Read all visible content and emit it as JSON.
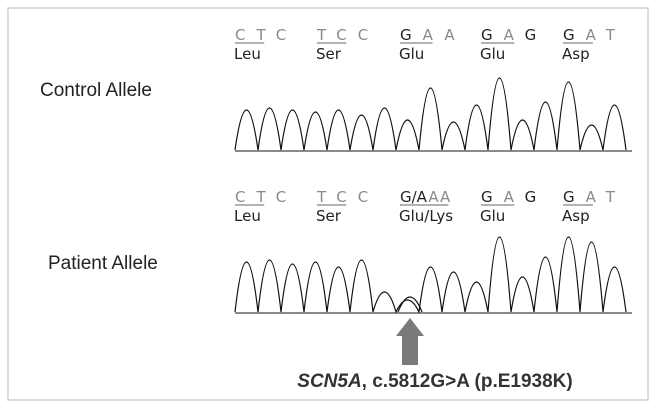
{
  "rows": [
    {
      "label": "Control Allele",
      "codons": [
        {
          "bases": [
            "C",
            "T",
            "C"
          ],
          "amino_acid": "Leu"
        },
        {
          "bases": [
            "T",
            "C",
            "C"
          ],
          "amino_acid": "Ser"
        },
        {
          "bases": [
            "G",
            "A",
            "A"
          ],
          "amino_acid": "Glu"
        },
        {
          "bases": [
            "G",
            "A",
            "G"
          ],
          "amino_acid": "Glu"
        },
        {
          "bases": [
            "G",
            "A",
            "T"
          ],
          "amino_acid": "Asp"
        }
      ]
    },
    {
      "label": "Patient Allele",
      "codons": [
        {
          "bases": [
            "C",
            "T",
            "C"
          ],
          "amino_acid": "Leu"
        },
        {
          "bases": [
            "T",
            "C",
            "C"
          ],
          "amino_acid": "Ser"
        },
        {
          "bases": [
            "G/A",
            "A",
            "A"
          ],
          "amino_acid": "Glu/Lys"
        },
        {
          "bases": [
            "G",
            "A",
            "G"
          ],
          "amino_acid": "Glu"
        },
        {
          "bases": [
            "G",
            "A",
            "T"
          ],
          "amino_acid": "Asp"
        }
      ]
    }
  ],
  "caption": {
    "gene": "SCN5A",
    "variant": ", c.5812G>A (p.E1938K)"
  }
}
